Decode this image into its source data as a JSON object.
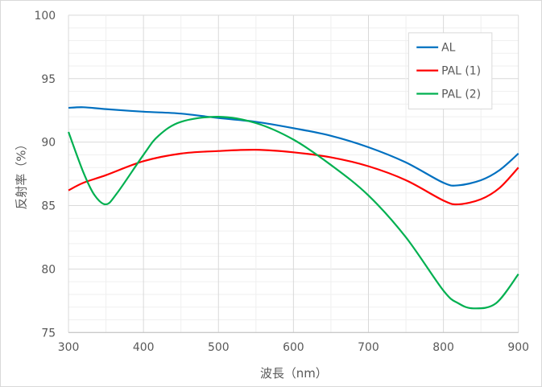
{
  "chart_data": {
    "type": "line",
    "title": "",
    "xlabel": "波長（nm）",
    "ylabel": "反射率（%）",
    "xlim": [
      300,
      900
    ],
    "ylim": [
      75,
      100
    ],
    "xticks": [
      300,
      400,
      500,
      600,
      700,
      800,
      900
    ],
    "yticks": [
      75,
      80,
      85,
      90,
      95,
      100
    ],
    "grid": true,
    "legend_position": "top-right",
    "series": [
      {
        "name": "AL",
        "color": "#0070c0",
        "x": [
          300,
          320,
          350,
          400,
          450,
          500,
          550,
          600,
          650,
          700,
          750,
          800,
          820,
          850,
          875,
          900
        ],
        "y": [
          92.7,
          92.75,
          92.6,
          92.4,
          92.25,
          91.9,
          91.6,
          91.1,
          90.5,
          89.6,
          88.4,
          86.8,
          86.6,
          87.0,
          87.8,
          89.1
        ]
      },
      {
        "name": "PAL (1)",
        "color": "#ff0000",
        "x": [
          300,
          320,
          350,
          400,
          450,
          500,
          550,
          600,
          650,
          700,
          750,
          800,
          820,
          850,
          875,
          900
        ],
        "y": [
          86.2,
          86.8,
          87.4,
          88.5,
          89.1,
          89.3,
          89.4,
          89.2,
          88.8,
          88.1,
          87.0,
          85.4,
          85.1,
          85.5,
          86.4,
          88.0
        ]
      },
      {
        "name": "PAL (2)",
        "color": "#00b050",
        "x": [
          300,
          320,
          335,
          350,
          365,
          400,
          420,
          450,
          500,
          550,
          600,
          650,
          700,
          750,
          800,
          820,
          840,
          870,
          900
        ],
        "y": [
          90.8,
          87.6,
          85.8,
          85.1,
          86.0,
          89.0,
          90.5,
          91.6,
          92.0,
          91.5,
          90.2,
          88.2,
          85.8,
          82.5,
          78.3,
          77.3,
          76.9,
          77.3,
          79.6
        ]
      }
    ]
  }
}
